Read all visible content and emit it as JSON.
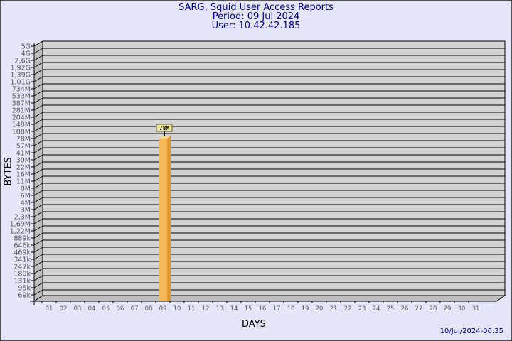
{
  "chart_data": {
    "type": "bar",
    "title": "SARG, Squid User Access Reports",
    "subtitle_period": "Period: 09 Jul 2024",
    "subtitle_user": "User: 10.42.42.185",
    "xlabel": "DAYS",
    "ylabel": "BYTES",
    "y_scale": "log",
    "grid": true,
    "y_tick_labels": [
      "5G",
      "4G",
      "2,6G",
      "1,92G",
      "1,39G",
      "1,01G",
      "734M",
      "533M",
      "387M",
      "281M",
      "204M",
      "148M",
      "108M",
      "78M",
      "57M",
      "41M",
      "30M",
      "22M",
      "16M",
      "11M",
      "8M",
      "6M",
      "4M",
      "3M",
      "2,3M",
      "1,69M",
      "1,22M",
      "889k",
      "646k",
      "469k",
      "341k",
      "247k",
      "180k",
      "131k",
      "95k",
      "69k"
    ],
    "categories": [
      "01",
      "02",
      "03",
      "04",
      "05",
      "06",
      "07",
      "08",
      "09",
      "10",
      "11",
      "12",
      "13",
      "14",
      "15",
      "16",
      "17",
      "18",
      "19",
      "20",
      "21",
      "22",
      "23",
      "24",
      "25",
      "26",
      "27",
      "28",
      "29",
      "30",
      "31"
    ],
    "bars": [
      {
        "category": "09",
        "tick_label": "78M",
        "data_label": "78M"
      }
    ],
    "bar_color": "#f5b95a"
  },
  "footer": {
    "timestamp": "10/Jul/2024-06:35"
  }
}
